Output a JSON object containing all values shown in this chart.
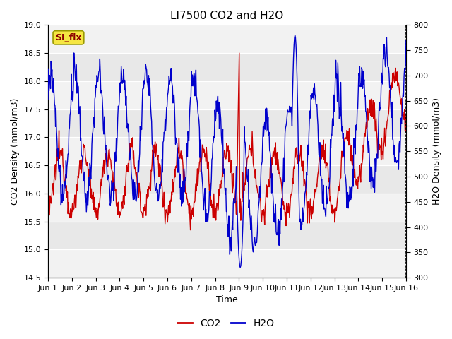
{
  "title": "LI7500 CO2 and H2O",
  "xlabel": "Time",
  "ylabel_left": "CO2 Density (mmol/m3)",
  "ylabel_right": "H2O Density (mmol/m3)",
  "ylim_left": [
    14.5,
    19.0
  ],
  "ylim_right": [
    300,
    800
  ],
  "yticks_left": [
    14.5,
    15.0,
    15.5,
    16.0,
    16.5,
    17.0,
    17.5,
    18.0,
    18.5,
    19.0
  ],
  "yticks_right": [
    300,
    350,
    400,
    450,
    500,
    550,
    600,
    650,
    700,
    750,
    800
  ],
  "xtick_labels": [
    "Jun 1",
    "Jun 2",
    "Jun 3",
    "Jun 4",
    "Jun 5",
    "Jun 6",
    "Jun 7",
    "Jun 8",
    "Jun 9",
    "Jun 10",
    "Jun 11",
    "Jun 12",
    "Jun 13",
    "Jun 14",
    "Jun 15",
    "Jun 16"
  ],
  "annotation_text": "SI_flx",
  "annotation_bg": "#f5e642",
  "annotation_edge": "#999900",
  "co2_color": "#cc0000",
  "h2o_color": "#0000cc",
  "plot_bg": "#f2f2f2",
  "band_light": "#e8e8e8",
  "band_dark": "#d0d0d0",
  "n_days": 15,
  "n_points_per_day": 48,
  "title_fontsize": 11,
  "label_fontsize": 9,
  "tick_fontsize": 8,
  "legend_fontsize": 10,
  "line_width": 1.0
}
